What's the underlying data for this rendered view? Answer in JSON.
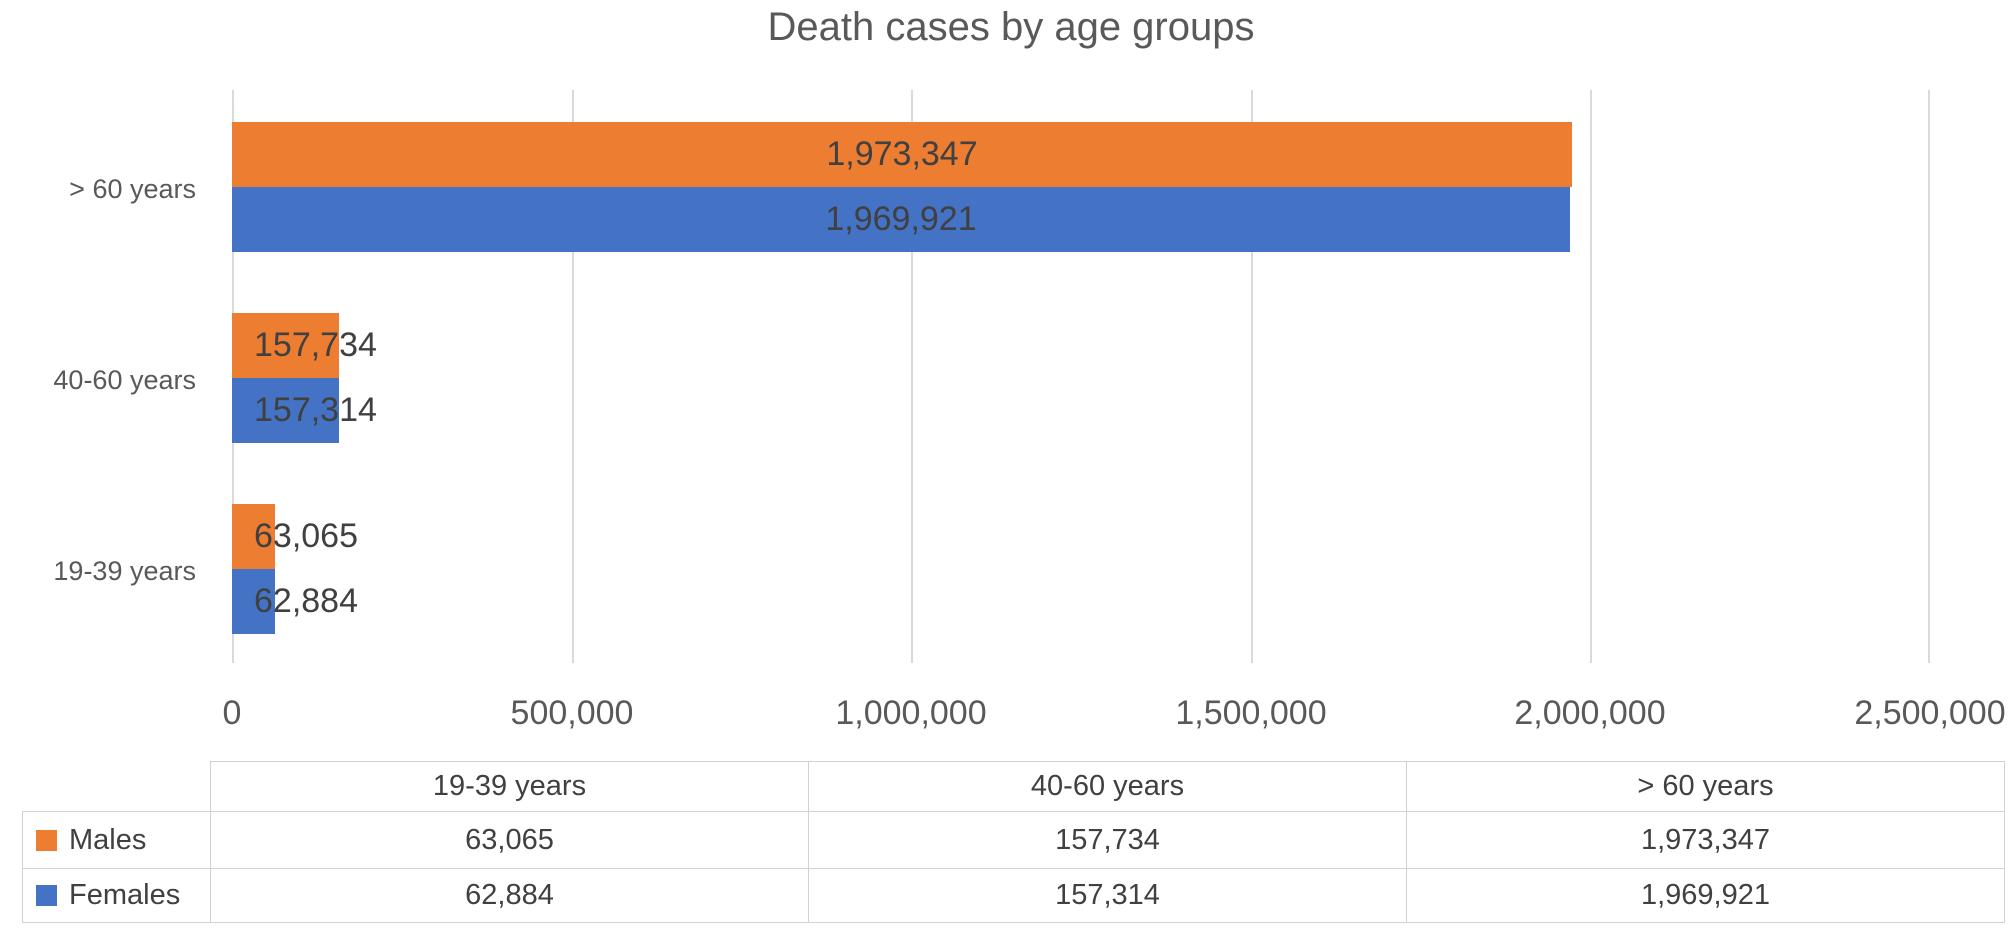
{
  "chart_data": {
    "type": "bar",
    "orientation": "horizontal",
    "title": "Death cases by age groups",
    "categories": [
      "19-39 years",
      "40-60 years",
      "> 60 years"
    ],
    "row_order_top_to_bottom": [
      "> 60 years",
      "40-60 years",
      "19-39 years"
    ],
    "series": [
      {
        "name": "Males",
        "color": "#ED7D31",
        "values": [
          63065,
          157734,
          1973347
        ],
        "labels": [
          "63,065",
          "157,734",
          "1,973,347"
        ]
      },
      {
        "name": "Females",
        "color": "#4472C4",
        "values": [
          62884,
          157314,
          1969921
        ],
        "labels": [
          "62,884",
          "157,314",
          "1,969,921"
        ]
      }
    ],
    "x_axis": {
      "min": 0,
      "max": 2500000,
      "tick_interval": 500000,
      "tick_labels": [
        "0",
        "500,000",
        "1,000,000",
        "1,500,000",
        "2,000,000",
        "2,500,000"
      ]
    },
    "gridlines": "vertical",
    "legend_position": "data-table",
    "data_table_shown": true,
    "colors": {
      "males": "#ED7D31",
      "females": "#4472C4",
      "gridline": "#d9d9d9",
      "axis_text": "#595959",
      "label_text": "#404040",
      "table_border": "#d2d2d2"
    }
  }
}
